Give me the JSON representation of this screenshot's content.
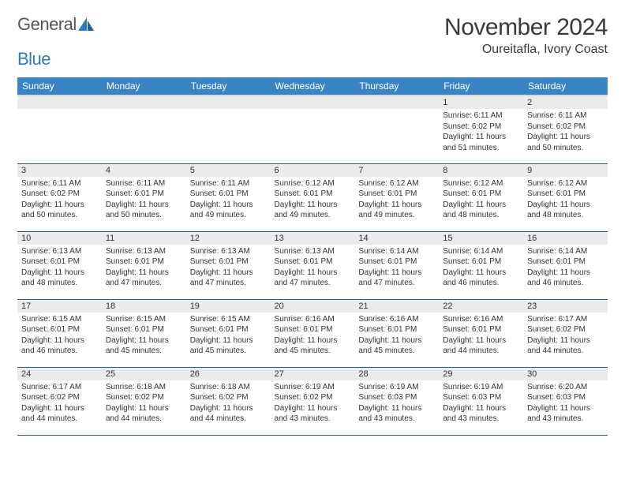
{
  "brand": {
    "word1": "General",
    "word2": "Blue"
  },
  "title": "November 2024",
  "location": "Oureitafla, Ivory Coast",
  "colors": {
    "header_bg": "#3b84c4",
    "header_text": "#ffffff",
    "daynum_bg": "#ebebeb",
    "row_divider": "#2f5f88",
    "brand_blue": "#2f7ac0",
    "text": "#333333"
  },
  "day_headers": [
    "Sunday",
    "Monday",
    "Tuesday",
    "Wednesday",
    "Thursday",
    "Friday",
    "Saturday"
  ],
  "weeks": [
    [
      {
        "n": "",
        "sr": "",
        "ss": "",
        "dl": ""
      },
      {
        "n": "",
        "sr": "",
        "ss": "",
        "dl": ""
      },
      {
        "n": "",
        "sr": "",
        "ss": "",
        "dl": ""
      },
      {
        "n": "",
        "sr": "",
        "ss": "",
        "dl": ""
      },
      {
        "n": "",
        "sr": "",
        "ss": "",
        "dl": ""
      },
      {
        "n": "1",
        "sr": "Sunrise: 6:11 AM",
        "ss": "Sunset: 6:02 PM",
        "dl": "Daylight: 11 hours and 51 minutes."
      },
      {
        "n": "2",
        "sr": "Sunrise: 6:11 AM",
        "ss": "Sunset: 6:02 PM",
        "dl": "Daylight: 11 hours and 50 minutes."
      }
    ],
    [
      {
        "n": "3",
        "sr": "Sunrise: 6:11 AM",
        "ss": "Sunset: 6:02 PM",
        "dl": "Daylight: 11 hours and 50 minutes."
      },
      {
        "n": "4",
        "sr": "Sunrise: 6:11 AM",
        "ss": "Sunset: 6:01 PM",
        "dl": "Daylight: 11 hours and 50 minutes."
      },
      {
        "n": "5",
        "sr": "Sunrise: 6:11 AM",
        "ss": "Sunset: 6:01 PM",
        "dl": "Daylight: 11 hours and 49 minutes."
      },
      {
        "n": "6",
        "sr": "Sunrise: 6:12 AM",
        "ss": "Sunset: 6:01 PM",
        "dl": "Daylight: 11 hours and 49 minutes."
      },
      {
        "n": "7",
        "sr": "Sunrise: 6:12 AM",
        "ss": "Sunset: 6:01 PM",
        "dl": "Daylight: 11 hours and 49 minutes."
      },
      {
        "n": "8",
        "sr": "Sunrise: 6:12 AM",
        "ss": "Sunset: 6:01 PM",
        "dl": "Daylight: 11 hours and 48 minutes."
      },
      {
        "n": "9",
        "sr": "Sunrise: 6:12 AM",
        "ss": "Sunset: 6:01 PM",
        "dl": "Daylight: 11 hours and 48 minutes."
      }
    ],
    [
      {
        "n": "10",
        "sr": "Sunrise: 6:13 AM",
        "ss": "Sunset: 6:01 PM",
        "dl": "Daylight: 11 hours and 48 minutes."
      },
      {
        "n": "11",
        "sr": "Sunrise: 6:13 AM",
        "ss": "Sunset: 6:01 PM",
        "dl": "Daylight: 11 hours and 47 minutes."
      },
      {
        "n": "12",
        "sr": "Sunrise: 6:13 AM",
        "ss": "Sunset: 6:01 PM",
        "dl": "Daylight: 11 hours and 47 minutes."
      },
      {
        "n": "13",
        "sr": "Sunrise: 6:13 AM",
        "ss": "Sunset: 6:01 PM",
        "dl": "Daylight: 11 hours and 47 minutes."
      },
      {
        "n": "14",
        "sr": "Sunrise: 6:14 AM",
        "ss": "Sunset: 6:01 PM",
        "dl": "Daylight: 11 hours and 47 minutes."
      },
      {
        "n": "15",
        "sr": "Sunrise: 6:14 AM",
        "ss": "Sunset: 6:01 PM",
        "dl": "Daylight: 11 hours and 46 minutes."
      },
      {
        "n": "16",
        "sr": "Sunrise: 6:14 AM",
        "ss": "Sunset: 6:01 PM",
        "dl": "Daylight: 11 hours and 46 minutes."
      }
    ],
    [
      {
        "n": "17",
        "sr": "Sunrise: 6:15 AM",
        "ss": "Sunset: 6:01 PM",
        "dl": "Daylight: 11 hours and 46 minutes."
      },
      {
        "n": "18",
        "sr": "Sunrise: 6:15 AM",
        "ss": "Sunset: 6:01 PM",
        "dl": "Daylight: 11 hours and 45 minutes."
      },
      {
        "n": "19",
        "sr": "Sunrise: 6:15 AM",
        "ss": "Sunset: 6:01 PM",
        "dl": "Daylight: 11 hours and 45 minutes."
      },
      {
        "n": "20",
        "sr": "Sunrise: 6:16 AM",
        "ss": "Sunset: 6:01 PM",
        "dl": "Daylight: 11 hours and 45 minutes."
      },
      {
        "n": "21",
        "sr": "Sunrise: 6:16 AM",
        "ss": "Sunset: 6:01 PM",
        "dl": "Daylight: 11 hours and 45 minutes."
      },
      {
        "n": "22",
        "sr": "Sunrise: 6:16 AM",
        "ss": "Sunset: 6:01 PM",
        "dl": "Daylight: 11 hours and 44 minutes."
      },
      {
        "n": "23",
        "sr": "Sunrise: 6:17 AM",
        "ss": "Sunset: 6:02 PM",
        "dl": "Daylight: 11 hours and 44 minutes."
      }
    ],
    [
      {
        "n": "24",
        "sr": "Sunrise: 6:17 AM",
        "ss": "Sunset: 6:02 PM",
        "dl": "Daylight: 11 hours and 44 minutes."
      },
      {
        "n": "25",
        "sr": "Sunrise: 6:18 AM",
        "ss": "Sunset: 6:02 PM",
        "dl": "Daylight: 11 hours and 44 minutes."
      },
      {
        "n": "26",
        "sr": "Sunrise: 6:18 AM",
        "ss": "Sunset: 6:02 PM",
        "dl": "Daylight: 11 hours and 44 minutes."
      },
      {
        "n": "27",
        "sr": "Sunrise: 6:19 AM",
        "ss": "Sunset: 6:02 PM",
        "dl": "Daylight: 11 hours and 43 minutes."
      },
      {
        "n": "28",
        "sr": "Sunrise: 6:19 AM",
        "ss": "Sunset: 6:03 PM",
        "dl": "Daylight: 11 hours and 43 minutes."
      },
      {
        "n": "29",
        "sr": "Sunrise: 6:19 AM",
        "ss": "Sunset: 6:03 PM",
        "dl": "Daylight: 11 hours and 43 minutes."
      },
      {
        "n": "30",
        "sr": "Sunrise: 6:20 AM",
        "ss": "Sunset: 6:03 PM",
        "dl": "Daylight: 11 hours and 43 minutes."
      }
    ]
  ]
}
